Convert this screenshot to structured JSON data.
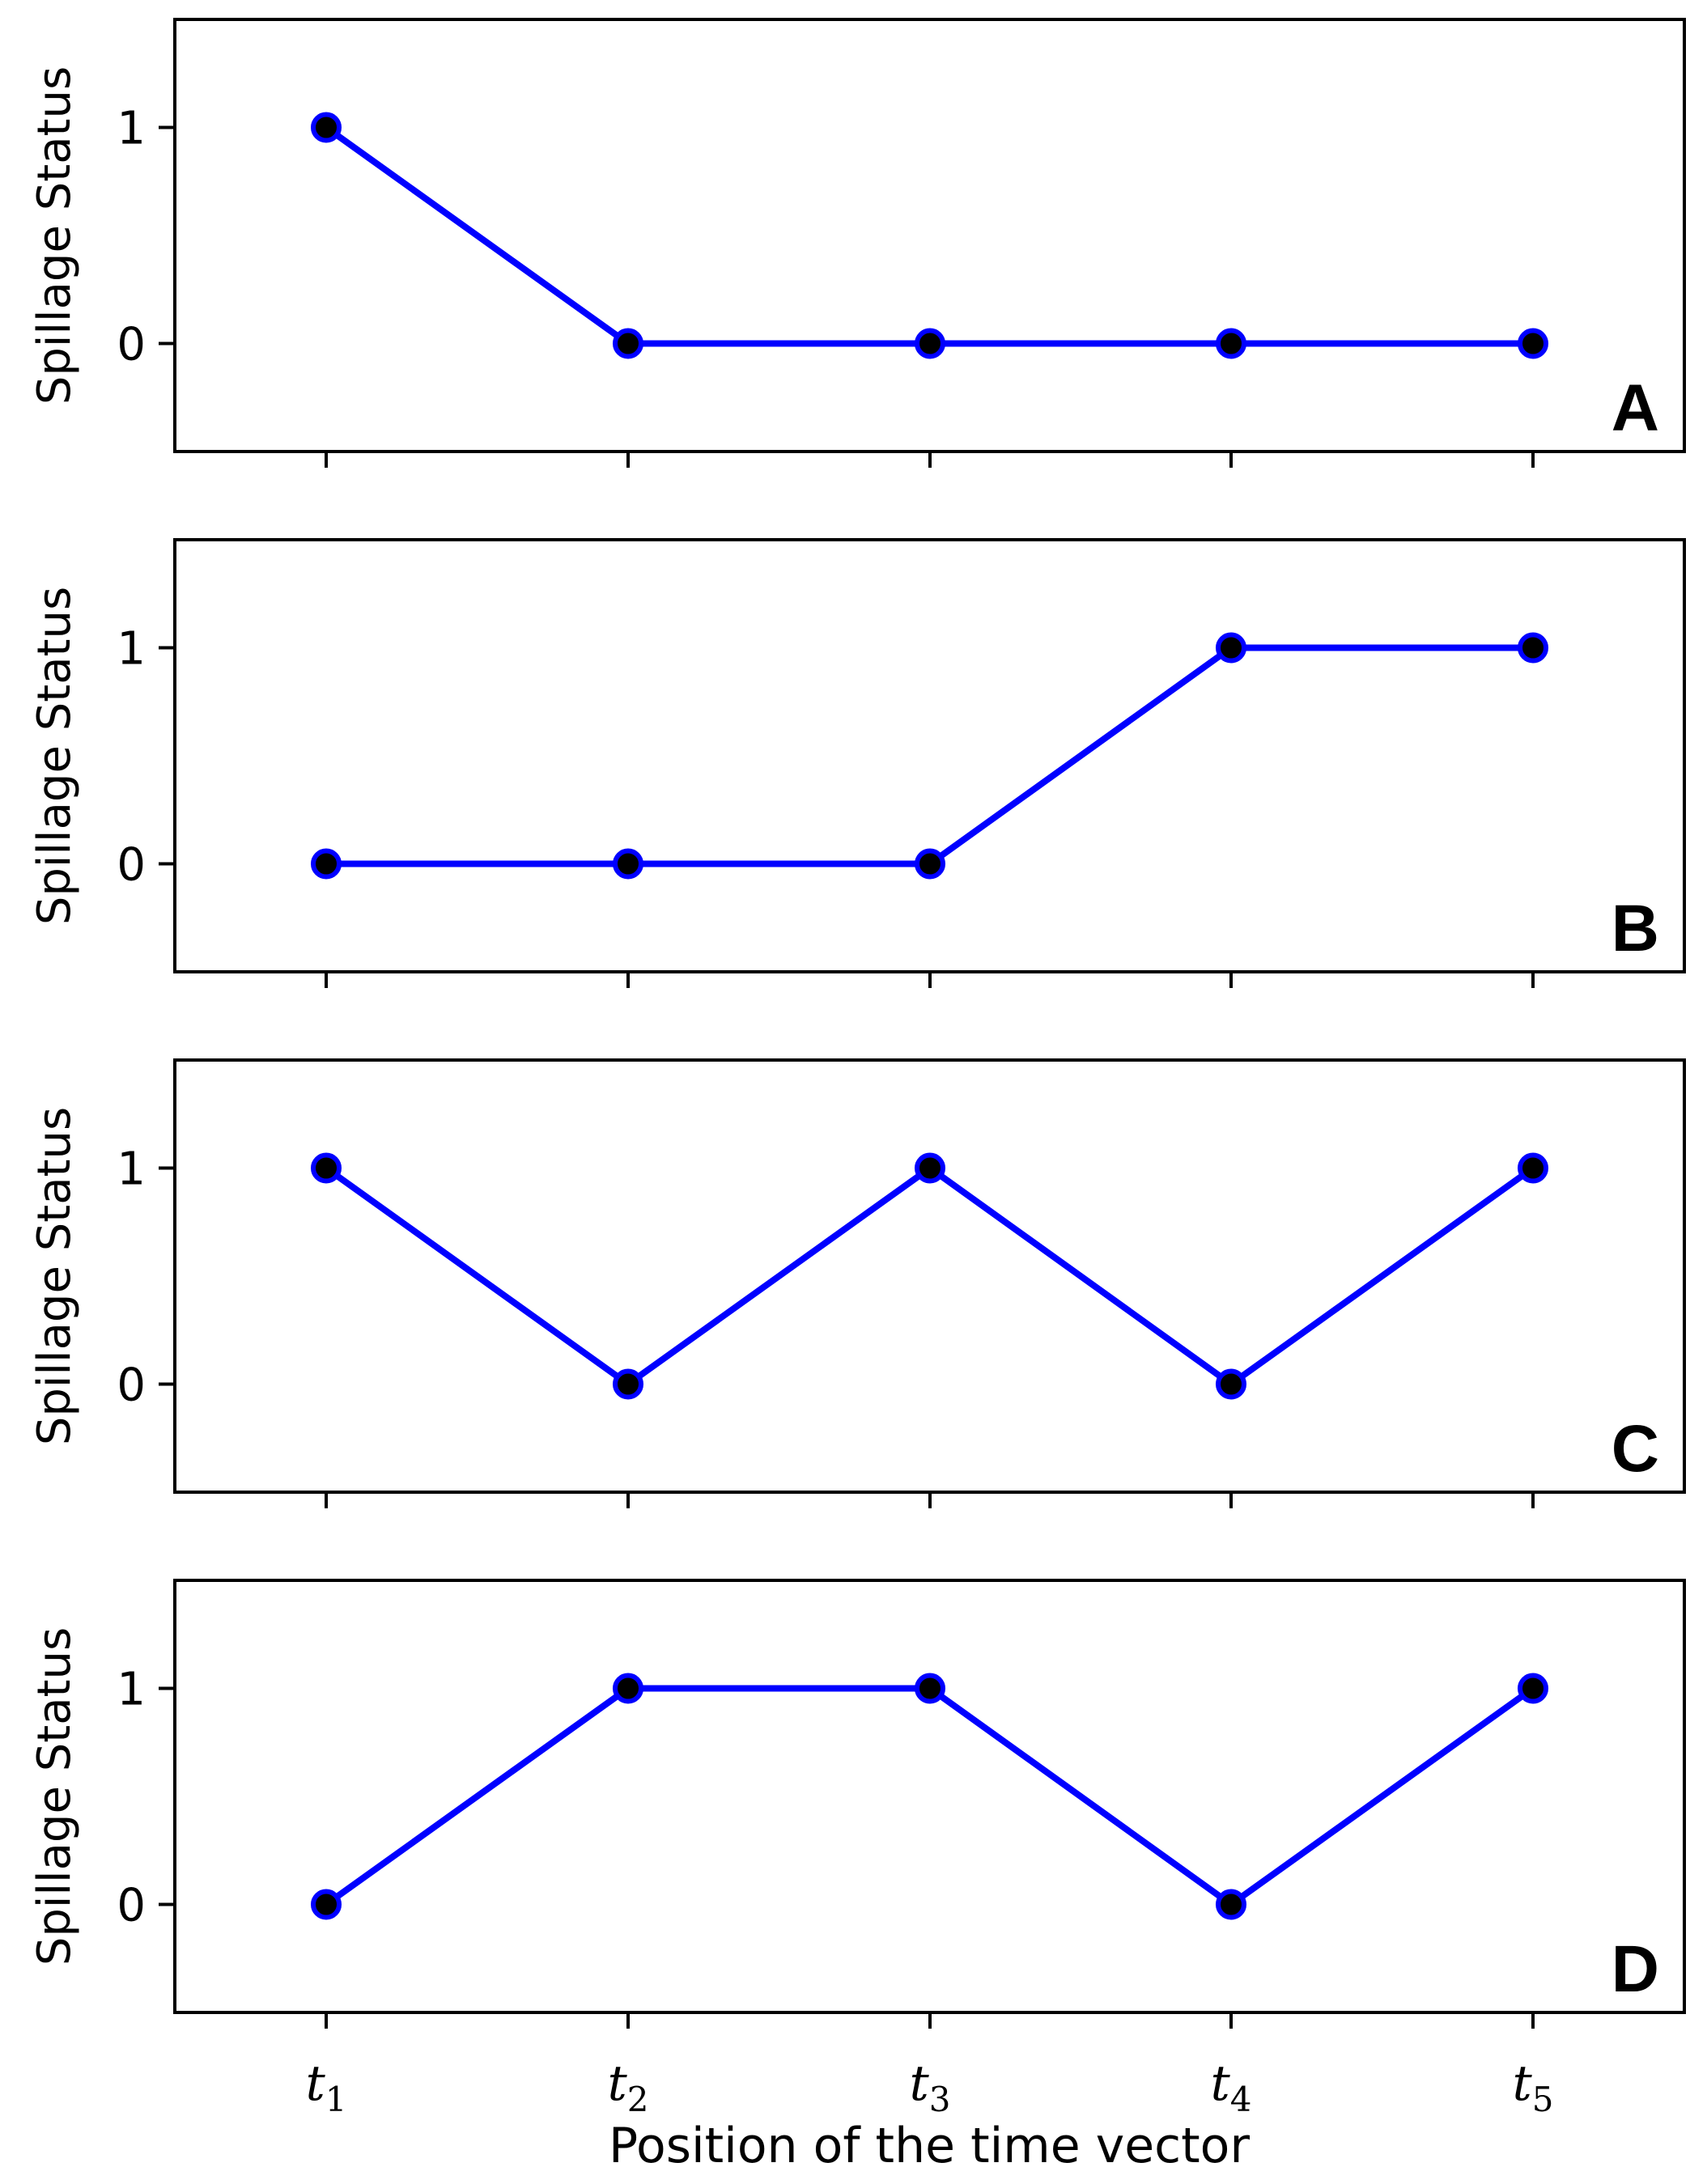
{
  "chart_data": [
    {
      "type": "line",
      "panel_label": "A",
      "categories": [
        "t1",
        "t2",
        "t3",
        "t4",
        "t5"
      ],
      "values": [
        1,
        0,
        0,
        0,
        0
      ],
      "ylabel": "Spillage Status",
      "yticks": [
        0,
        1
      ],
      "ylim": [
        -0.5,
        1.5
      ]
    },
    {
      "type": "line",
      "panel_label": "B",
      "categories": [
        "t1",
        "t2",
        "t3",
        "t4",
        "t5"
      ],
      "values": [
        0,
        0,
        0,
        1,
        1
      ],
      "ylabel": "Spillage Status",
      "yticks": [
        0,
        1
      ],
      "ylim": [
        -0.5,
        1.5
      ]
    },
    {
      "type": "line",
      "panel_label": "C",
      "categories": [
        "t1",
        "t2",
        "t3",
        "t4",
        "t5"
      ],
      "values": [
        1,
        0,
        1,
        0,
        1
      ],
      "ylabel": "Spillage Status",
      "yticks": [
        0,
        1
      ],
      "ylim": [
        -0.5,
        1.5
      ]
    },
    {
      "type": "line",
      "panel_label": "D",
      "categories": [
        "t1",
        "t2",
        "t3",
        "t4",
        "t5"
      ],
      "values": [
        0,
        1,
        1,
        0,
        1
      ],
      "ylabel": "Spillage Status",
      "yticks": [
        0,
        1
      ],
      "ylim": [
        -0.5,
        1.5
      ]
    }
  ],
  "xtick_labels": [
    {
      "base": "t",
      "sub": "1"
    },
    {
      "base": "t",
      "sub": "2"
    },
    {
      "base": "t",
      "sub": "3"
    },
    {
      "base": "t",
      "sub": "4"
    },
    {
      "base": "t",
      "sub": "5"
    }
  ],
  "xlabel": "Position of the time vector",
  "colors": {
    "line": "#0000ff",
    "marker_face": "#000000",
    "marker_edge": "#0000ff"
  }
}
